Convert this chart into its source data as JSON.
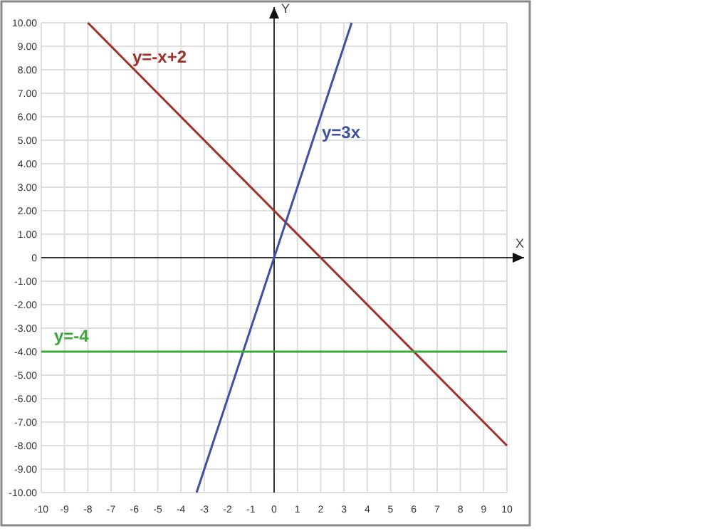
{
  "chart_data": {
    "type": "line",
    "xlabel": "X",
    "ylabel": "Y",
    "xlim": [
      -10,
      10
    ],
    "ylim": [
      -10,
      10
    ],
    "xticks": [
      -10,
      -9,
      -8,
      -7,
      -6,
      -5,
      -4,
      -3,
      -2,
      -1,
      0,
      1,
      2,
      3,
      4,
      5,
      6,
      7,
      8,
      9,
      10
    ],
    "yticks": [
      {
        "value": -10,
        "label": "-10.00"
      },
      {
        "value": -9,
        "label": "-9.00"
      },
      {
        "value": -8,
        "label": "-8.00"
      },
      {
        "value": -7,
        "label": "-7.00"
      },
      {
        "value": -6,
        "label": "-6.00"
      },
      {
        "value": -5,
        "label": "-5.00"
      },
      {
        "value": -4,
        "label": "-4.00"
      },
      {
        "value": -3,
        "label": "-3.00"
      },
      {
        "value": -2,
        "label": "-2.00"
      },
      {
        "value": -1,
        "label": "-1.00"
      },
      0,
      {
        "value": 1,
        "label": "1.00"
      },
      {
        "value": 2,
        "label": "2.00"
      },
      {
        "value": 3,
        "label": "3.00"
      },
      {
        "value": 4,
        "label": "4.00"
      },
      {
        "value": 5,
        "label": "5.00"
      },
      {
        "value": 6,
        "label": "6.00"
      },
      {
        "value": 7,
        "label": "7.00"
      },
      {
        "value": 8,
        "label": "8.00"
      },
      {
        "value": 9,
        "label": "9.00"
      },
      {
        "value": 10,
        "label": "10.00"
      }
    ],
    "grid": true,
    "marker": "none",
    "line_style": "solid",
    "series": [
      {
        "name": "y=-x+2",
        "color": "#a0302a",
        "x": [
          -8,
          10
        ],
        "values": [
          10,
          -8
        ]
      },
      {
        "name": "y=3x",
        "color": "#4050a0",
        "x": [
          -3.33,
          3.33
        ],
        "values": [
          -10,
          10
        ]
      },
      {
        "name": "y=-4",
        "color": "#3aa83a",
        "x": [
          -10,
          10
        ],
        "values": [
          -4,
          -4
        ]
      }
    ]
  }
}
